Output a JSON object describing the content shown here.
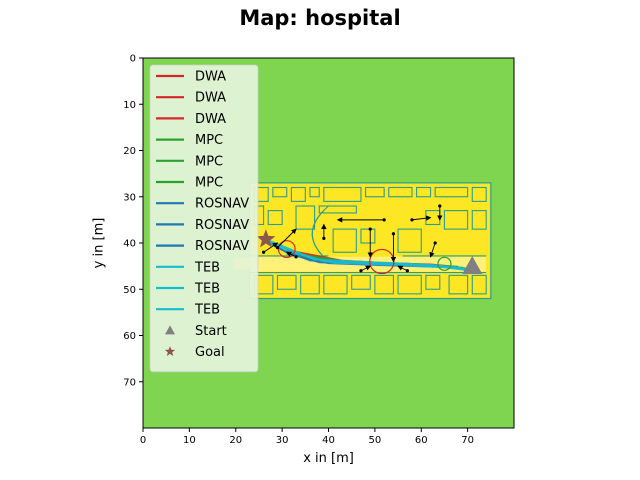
{
  "figure": {
    "title": "Map: hospital",
    "xlabel": "x in [m]",
    "ylabel": "y in [m]"
  },
  "colors": {
    "free_space": "#7fd450",
    "building": "#fde725",
    "walls": "#2a9d8f",
    "corridor": "#fff7c0",
    "legend_bg": "#e6f5dc"
  },
  "chart_data": {
    "type": "line",
    "xlim": [
      0,
      80
    ],
    "ylim": [
      80,
      0
    ],
    "xticks": [
      0,
      10,
      20,
      30,
      40,
      50,
      60,
      70
    ],
    "yticks": [
      0,
      10,
      20,
      30,
      40,
      50,
      60,
      70
    ],
    "grid": false,
    "legend_placement": "top-left",
    "background": "occupancy map",
    "building_extent": {
      "x": [
        23,
        75
      ],
      "y": [
        27,
        52
      ]
    },
    "series": [
      {
        "name": "DWA",
        "color": "#d62728",
        "points": [
          [
            31,
            41.5
          ],
          [
            43,
            43.8
          ],
          [
            52,
            44.3
          ],
          [
            62,
            44.6
          ],
          [
            66,
            45
          ]
        ]
      },
      {
        "name": "DWA",
        "color": "#d62728",
        "points": [
          [
            31,
            41.8
          ],
          [
            44,
            44.1
          ],
          [
            53,
            44.6
          ],
          [
            65,
            45
          ]
        ]
      },
      {
        "name": "DWA",
        "color": "#d62728",
        "points": [
          [
            31,
            42
          ],
          [
            45,
            44.4
          ],
          [
            55,
            44.7
          ],
          [
            66,
            45.1
          ]
        ]
      },
      {
        "name": "MPC",
        "color": "#2ca02c",
        "points": [
          [
            31,
            42
          ],
          [
            45,
            44.2
          ],
          [
            58,
            44.5
          ],
          [
            68,
            45.1
          ]
        ]
      },
      {
        "name": "MPC",
        "color": "#2ca02c",
        "points": [
          [
            31,
            42.2
          ],
          [
            46,
            44.4
          ],
          [
            60,
            44.8
          ],
          [
            69,
            45.3
          ]
        ]
      },
      {
        "name": "MPC",
        "color": "#2ca02c",
        "points": [
          [
            31,
            42.4
          ],
          [
            47,
            44.6
          ],
          [
            62,
            45
          ],
          [
            70,
            45.5
          ]
        ]
      },
      {
        "name": "ROSNAV",
        "color": "#1f77b4",
        "points": [
          [
            27,
            39.5
          ],
          [
            30,
            41.5
          ],
          [
            36,
            43.8
          ],
          [
            50,
            44.4
          ],
          [
            63,
            44.9
          ],
          [
            71,
            45.6
          ]
        ]
      },
      {
        "name": "ROSNAV",
        "color": "#1f77b4",
        "points": [
          [
            27,
            39.7
          ],
          [
            31,
            42
          ],
          [
            38,
            44.2
          ],
          [
            52,
            44.7
          ],
          [
            64,
            45.1
          ],
          [
            71,
            45.8
          ]
        ]
      },
      {
        "name": "ROSNAV",
        "color": "#1f77b4",
        "points": [
          [
            27,
            39.9
          ],
          [
            32,
            42.6
          ],
          [
            40,
            44.4
          ],
          [
            54,
            44.9
          ],
          [
            65,
            45.2
          ],
          [
            71,
            45.9
          ]
        ]
      },
      {
        "name": "TEB",
        "color": "#17becf",
        "points": [
          [
            27,
            39.4
          ],
          [
            31,
            41
          ],
          [
            37,
            43.6
          ],
          [
            51,
            44.2
          ],
          [
            62,
            44.7
          ],
          [
            70,
            45.5
          ]
        ]
      },
      {
        "name": "TEB",
        "color": "#17becf",
        "points": [
          [
            27,
            39.6
          ],
          [
            32,
            41.6
          ],
          [
            39,
            44
          ],
          [
            53,
            44.5
          ],
          [
            64,
            45
          ],
          [
            70,
            45.7
          ]
        ]
      },
      {
        "name": "TEB",
        "color": "#17becf",
        "points": [
          [
            27,
            39.8
          ],
          [
            33,
            42.3
          ],
          [
            41,
            44.3
          ],
          [
            55,
            44.8
          ],
          [
            65,
            45.3
          ],
          [
            70,
            45.9
          ]
        ]
      }
    ],
    "start": {
      "name": "Start",
      "color": "#808080",
      "marker": "triangle",
      "point": [
        71,
        45.2
      ]
    },
    "goal": {
      "name": "Goal",
      "color": "#8c564b",
      "marker": "star",
      "point": [
        26.5,
        39.2
      ]
    },
    "obstacles": [
      {
        "center": [
          31,
          41.3
        ],
        "radius": 1.8,
        "color": "#d62728"
      },
      {
        "center": [
          51.5,
          44
        ],
        "radius": 2.6,
        "color": "#d62728"
      },
      {
        "center": [
          65,
          44.5
        ],
        "radius": 1.4,
        "color": "#2ca02c"
      }
    ],
    "obstacle_motion": [
      [
        [
          29,
          41
        ],
        [
          33,
          37
        ]
      ],
      [
        [
          26,
          42
        ],
        [
          29,
          40
        ]
      ],
      [
        [
          52,
          35
        ],
        [
          42,
          35
        ]
      ],
      [
        [
          58,
          35
        ],
        [
          62,
          34.5
        ]
      ],
      [
        [
          39,
          39
        ],
        [
          39,
          36
        ]
      ],
      [
        [
          49,
          37
        ],
        [
          49,
          43
        ]
      ],
      [
        [
          54,
          38
        ],
        [
          54,
          44
        ]
      ],
      [
        [
          63,
          40
        ],
        [
          62,
          43
        ]
      ],
      [
        [
          57,
          46
        ],
        [
          55,
          45
        ]
      ],
      [
        [
          47,
          46
        ],
        [
          49,
          45
        ]
      ],
      [
        [
          64,
          32
        ],
        [
          64,
          35
        ]
      ],
      [
        [
          33,
          43
        ],
        [
          31,
          42
        ]
      ]
    ]
  }
}
